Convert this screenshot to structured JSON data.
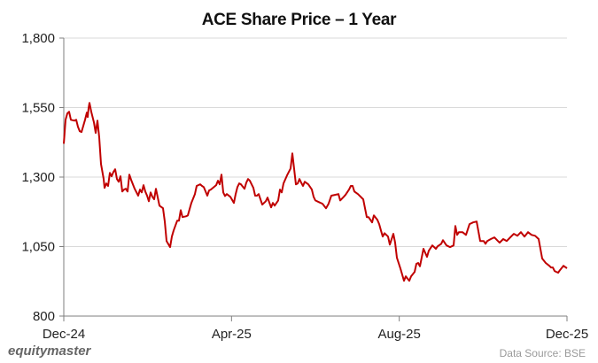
{
  "title": "ACE Share Price – 1 Year",
  "footer": {
    "brand": "equitymaster",
    "source": "Data Source: BSE"
  },
  "colors": {
    "line": "#c00000",
    "grid": "#d9d9d9",
    "axis": "#7f7f7f"
  },
  "chart_data": {
    "type": "line",
    "title": "ACE Share Price – 1 Year",
    "xlabel": "",
    "ylabel": "",
    "ylim": [
      800,
      1800
    ],
    "yticks": [
      800,
      1050,
      1300,
      1550,
      1800
    ],
    "ytick_labels": [
      "800",
      "1,050",
      "1,300",
      "1,550",
      "1,800"
    ],
    "xticks": [
      "Dec-24",
      "Apr-25",
      "Aug-25",
      "Dec-25"
    ],
    "grid": "horizontal",
    "legend": "none",
    "series": [
      {
        "name": "ACE Share Price",
        "x_fraction": [
          0,
          0.0035,
          0.007,
          0.0106,
          0.0141,
          0.0211,
          0.0246,
          0.0282,
          0.0317,
          0.0352,
          0.0423,
          0.0458,
          0.0475,
          0.0493,
          0.0511,
          0.0546,
          0.0599,
          0.0634,
          0.0669,
          0.0704,
          0.0739,
          0.0792,
          0.081,
          0.0845,
          0.088,
          0.0915,
          0.0951,
          0.0986,
          0.1021,
          0.1056,
          0.1092,
          0.1127,
          0.1162,
          0.1197,
          0.1232,
          0.1268,
          0.1303,
          0.1338,
          0.1408,
          0.1479,
          0.1514,
          0.1549,
          0.1585,
          0.162,
          0.1655,
          0.169,
          0.1725,
          0.1761,
          0.1796,
          0.1831,
          0.1901,
          0.1972,
          0.2007,
          0.2042,
          0.2113,
          0.2148,
          0.2183,
          0.2254,
          0.2289,
          0.2324,
          0.2359,
          0.243,
          0.2465,
          0.2535,
          0.2606,
          0.2641,
          0.2711,
          0.2746,
          0.2782,
          0.2852,
          0.2887,
          0.2923,
          0.3028,
          0.3063,
          0.3099,
          0.3134,
          0.3169,
          0.3204,
          0.3239,
          0.331,
          0.338,
          0.3415,
          0.3451,
          0.3486,
          0.3521,
          0.3592,
          0.3627,
          0.3662,
          0.3697,
          0.3732,
          0.3768,
          0.3803,
          0.3838,
          0.3873,
          0.3944,
          0.4014,
          0.4049,
          0.412,
          0.4155,
          0.419,
          0.4261,
          0.4296,
          0.4331,
          0.4366,
          0.4437,
          0.4507,
          0.4542,
          0.4613,
          0.4648,
          0.4683,
          0.4718,
          0.4754,
          0.4789,
          0.4859,
          0.493,
          0.4965,
          0.5,
          0.507,
          0.5141,
          0.5211,
          0.5262,
          0.5317,
          0.5387,
          0.5458,
          0.5493,
          0.5563,
          0.5599,
          0.5669,
          0.5704,
          0.5739,
          0.5775,
          0.5845,
          0.5951,
          0.5986,
          0.6021,
          0.6056,
          0.6127,
          0.6162,
          0.6232,
          0.6268,
          0.6303,
          0.6338,
          0.6373,
          0.6444,
          0.6479,
          0.6549,
          0.6585,
          0.662,
          0.669,
          0.6761,
          0.6796,
          0.6866,
          0.6901,
          0.6972,
          0.7007,
          0.7042,
          0.7077,
          0.7148,
          0.7218,
          0.7254,
          0.7324,
          0.7394,
          0.743,
          0.75,
          0.7535,
          0.7606,
          0.7676,
          0.7746,
          0.7782,
          0.7817,
          0.7852,
          0.7923,
          0.7993,
          0.8063,
          0.8134,
          0.8204,
          0.8275,
          0.8345,
          0.838,
          0.8415,
          0.8486,
          0.8556,
          0.8627,
          0.8662,
          0.8732,
          0.8803,
          0.8873,
          0.8944,
          0.9014,
          0.9085,
          0.9155,
          0.9225,
          0.9296,
          0.9366,
          0.9437,
          0.9507,
          0.9577,
          0.9648,
          0.9683,
          0.9718,
          0.9754,
          0.9789,
          0.9824,
          0.9859,
          0.993,
          1
        ],
        "values": [
          1420,
          1506,
          1529,
          1535,
          1506,
          1503,
          1506,
          1481,
          1465,
          1462,
          1506,
          1532,
          1516,
          1548,
          1567,
          1535,
          1497,
          1459,
          1503,
          1443,
          1347,
          1293,
          1261,
          1277,
          1268,
          1315,
          1303,
          1318,
          1328,
          1293,
          1283,
          1303,
          1248,
          1255,
          1258,
          1248,
          1309,
          1290,
          1258,
          1233,
          1255,
          1245,
          1271,
          1248,
          1233,
          1213,
          1245,
          1229,
          1220,
          1258,
          1197,
          1188,
          1140,
          1070,
          1048,
          1086,
          1108,
          1143,
          1143,
          1181,
          1156,
          1159,
          1162,
          1207,
          1239,
          1268,
          1274,
          1268,
          1264,
          1233,
          1252,
          1255,
          1271,
          1287,
          1274,
          1309,
          1245,
          1232,
          1239,
          1229,
          1207,
          1239,
          1264,
          1277,
          1274,
          1258,
          1280,
          1293,
          1287,
          1274,
          1261,
          1233,
          1233,
          1239,
          1201,
          1213,
          1226,
          1191,
          1207,
          1197,
          1216,
          1255,
          1245,
          1277,
          1306,
          1331,
          1385,
          1274,
          1277,
          1293,
          1280,
          1268,
          1283,
          1274,
          1255,
          1229,
          1216,
          1210,
          1204,
          1188,
          1204,
          1233,
          1236,
          1239,
          1216,
          1229,
          1236,
          1255,
          1268,
          1268,
          1248,
          1239,
          1220,
          1188,
          1156,
          1156,
          1137,
          1162,
          1146,
          1131,
          1108,
          1086,
          1098,
          1086,
          1057,
          1096,
          1064,
          1010,
          971,
          927,
          943,
          927,
          943,
          959,
          988,
          991,
          979,
          1042,
          1013,
          1035,
          1054,
          1042,
          1051,
          1060,
          1073,
          1054,
          1048,
          1054,
          1124,
          1092,
          1102,
          1102,
          1092,
          1131,
          1137,
          1140,
          1070,
          1070,
          1060,
          1070,
          1077,
          1083,
          1070,
          1064,
          1077,
          1070,
          1083,
          1096,
          1089,
          1102,
          1086,
          1102,
          1092,
          1089,
          1077,
          1007,
          991,
          981,
          975,
          975,
          962,
          959,
          956,
          965,
          981,
          972,
          965,
          943,
          911,
          918,
          921,
          930,
          978,
          969
        ]
      }
    ]
  }
}
